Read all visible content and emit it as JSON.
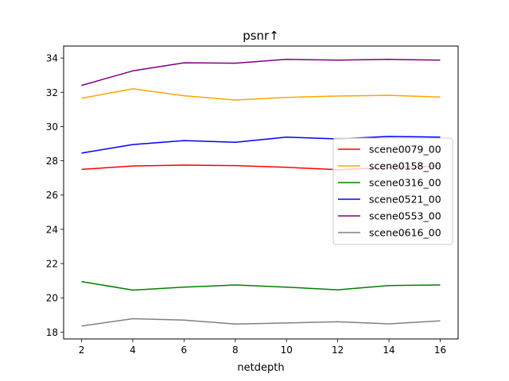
{
  "chart_data": {
    "type": "line",
    "title": "psnr↑",
    "xlabel": "netdepth",
    "ylabel": "",
    "x": [
      2,
      4,
      6,
      8,
      10,
      12,
      14,
      16
    ],
    "xticks": [
      "2",
      "4",
      "6",
      "8",
      "10",
      "12",
      "14",
      "16"
    ],
    "xlim": [
      1.3,
      16.7
    ],
    "ylim": [
      17.6,
      34.7
    ],
    "yticks": [
      "18",
      "20",
      "22",
      "24",
      "26",
      "28",
      "30",
      "32",
      "34"
    ],
    "grid": false,
    "legend": {
      "placement": "center-right"
    },
    "series": [
      {
        "name": "scene0079_00",
        "color": "#ff0000",
        "values": [
          27.5,
          27.7,
          27.75,
          27.72,
          27.62,
          27.48,
          27.6,
          27.7
        ]
      },
      {
        "name": "scene0158_00",
        "color": "#ffa500",
        "values": [
          31.65,
          32.2,
          31.8,
          31.55,
          31.7,
          31.78,
          31.82,
          31.72
        ]
      },
      {
        "name": "scene0316_00",
        "color": "#008000",
        "values": [
          20.95,
          20.45,
          20.62,
          20.75,
          20.62,
          20.47,
          20.72,
          20.75
        ]
      },
      {
        "name": "scene0521_00",
        "color": "#0000ff",
        "values": [
          28.45,
          28.95,
          29.18,
          29.08,
          29.38,
          29.28,
          29.42,
          29.38
        ]
      },
      {
        "name": "scene0553_00",
        "color": "#800080",
        "values": [
          32.4,
          33.25,
          33.72,
          33.7,
          33.92,
          33.88,
          33.92,
          33.88
        ]
      },
      {
        "name": "scene0616_00",
        "color": "#808080",
        "values": [
          18.35,
          18.78,
          18.7,
          18.47,
          18.53,
          18.6,
          18.48,
          18.65
        ]
      }
    ]
  }
}
